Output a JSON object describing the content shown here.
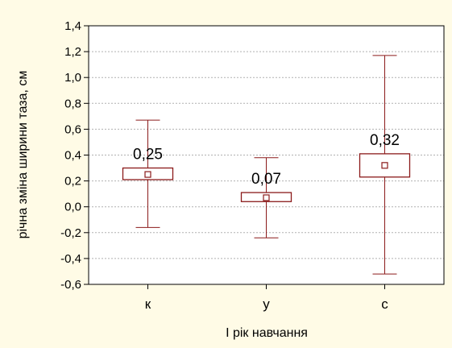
{
  "chart_data": {
    "type": "box",
    "categories": [
      "к",
      "у",
      "с"
    ],
    "boxes": [
      {
        "category": "к",
        "mean": 0.25,
        "mean_label": "0,25",
        "box_low": 0.21,
        "box_high": 0.3,
        "whisker_low": -0.16,
        "whisker_high": 0.67
      },
      {
        "category": "у",
        "mean": 0.07,
        "mean_label": "0,07",
        "box_low": 0.04,
        "box_high": 0.11,
        "whisker_low": -0.24,
        "whisker_high": 0.38
      },
      {
        "category": "с",
        "mean": 0.32,
        "mean_label": "0,32",
        "box_low": 0.23,
        "box_high": 0.41,
        "whisker_low": -0.52,
        "whisker_high": 1.17
      }
    ],
    "ylim": [
      -0.6,
      1.4
    ],
    "yticks": [
      -0.6,
      -0.4,
      -0.2,
      0.0,
      0.2,
      0.4,
      0.6,
      0.8,
      1.0,
      1.2,
      1.4
    ],
    "ytick_labels": [
      "-0,6",
      "-0,4",
      "-0,2",
      "0,0",
      "0,2",
      "0,4",
      "0,6",
      "0,8",
      "1,0",
      "1,2",
      "1,4"
    ],
    "ylabel": "річна зміна ширини таза, см",
    "xlabel": "І рік навчання",
    "grid": true,
    "colors": {
      "box": "#8b1a1a",
      "grid": "#b0b0b0",
      "plot_bg": "#ffffff",
      "page_bg": "#fffbe6"
    }
  }
}
